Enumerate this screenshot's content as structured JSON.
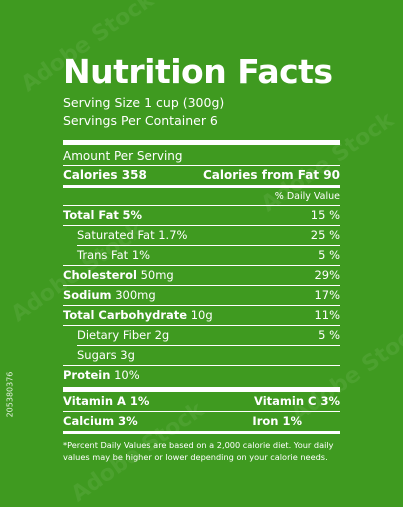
{
  "title": "Nutrition Facts",
  "serving_size": "Serving Size 1 cup (300g)",
  "servings_per_container": "Servings Per Container 6",
  "amount_per_serving": "Amount Per Serving",
  "calories": "Calories 358",
  "calories_from_fat": "Calories from Fat 90",
  "daily_value_header": "% Daily Value",
  "nutrients": [
    {
      "label": "Total Fat",
      "value": "5%",
      "dv": "15 %"
    },
    {
      "label": "Saturated Fat 1.7%",
      "value": "",
      "dv": "25 %"
    },
    {
      "label": "Trans Fat 1%",
      "value": "",
      "dv": "5 %"
    },
    {
      "label": "Cholesterol",
      "value": "50mg",
      "dv": "29%"
    },
    {
      "label": "Sodium",
      "value": "300mg",
      "dv": "17%"
    },
    {
      "label": "Total Carbohydrate",
      "value": "10g",
      "dv": "11%"
    },
    {
      "label": "Dietary Fiber 2g",
      "value": "",
      "dv": "5 %"
    },
    {
      "label": "Sugars 3g",
      "value": "",
      "dv": ""
    },
    {
      "label": "Protein",
      "value": "10%",
      "dv": ""
    }
  ],
  "vitamins": {
    "vitamin_a": "Vitamin A 1%",
    "vitamin_c": "Vitamin C 3%",
    "calcium": "Calcium 3%",
    "iron": "Iron 1%"
  },
  "footnote": "*Percent Daily Values are based on a 2,000 calorie diet.  Your daily values may be higher or lower depending on your calorie needs.",
  "stock_id": "205380376",
  "watermark_text": "Adobe Stock",
  "colors": {
    "background": "#3f9a20",
    "foreground": "#ffffff"
  }
}
